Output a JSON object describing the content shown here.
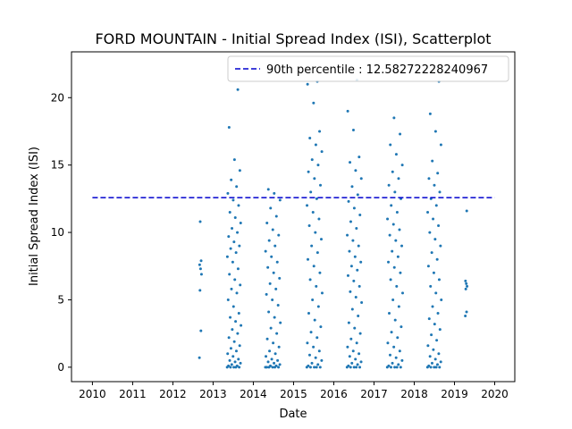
{
  "chart_data": {
    "type": "scatter",
    "title": "FORD MOUNTAIN - Initial Spread Index (ISI), Scatterplot",
    "xlabel": "Date",
    "ylabel": "Initial Spread Index (ISI)",
    "xlim": [
      2009.48,
      2020.5
    ],
    "ylim": [
      -1.07,
      23.4
    ],
    "x_ticks": [
      2010,
      2011,
      2012,
      2013,
      2014,
      2015,
      2016,
      2017,
      2018,
      2019,
      2020
    ],
    "y_ticks": [
      0,
      5,
      10,
      15,
      20
    ],
    "grid": false,
    "legend_position": "top-right",
    "marker_color": "#1f77b4",
    "reference_line": {
      "label": "90th percentile : 12.58272228240967",
      "value": 12.58272228240967,
      "x_range": [
        2010,
        2020
      ],
      "color": "#0000cd",
      "style": "dashed"
    },
    "seasons": [
      {
        "year": 2012,
        "start": 2012.66,
        "end": 2012.72,
        "values": [
          0.7,
          2.7,
          5.7,
          6.9,
          7.3,
          7.6,
          7.9,
          10.8
        ]
      },
      {
        "year": 2013,
        "start": 2013.35,
        "end": 2013.7,
        "values": [
          0,
          0,
          0,
          0,
          0,
          0.1,
          0.1,
          0.2,
          0.3,
          0.4,
          0.5,
          0.6,
          0.8,
          1.0,
          1.2,
          1.4,
          1.6,
          1.9,
          2.2,
          2.5,
          2.8,
          3.1,
          3.4,
          3.7,
          4.0,
          4.5,
          5.0,
          5.5,
          5.8,
          6.1,
          6.5,
          6.9,
          7.3,
          7.8,
          8.2,
          8.5,
          8.8,
          9.0,
          9.3,
          9.7,
          10.0,
          10.3,
          10.7,
          11.1,
          11.5,
          12.0,
          12.4,
          12.9,
          13.4,
          13.9,
          14.6,
          15.4,
          17.8,
          20.6
        ]
      },
      {
        "year": 2014,
        "start": 2014.3,
        "end": 2014.68,
        "values": [
          0,
          0,
          0,
          0,
          0,
          0,
          0.1,
          0.1,
          0.2,
          0.3,
          0.4,
          0.5,
          0.6,
          0.8,
          1.0,
          1.2,
          1.5,
          1.8,
          2.1,
          2.5,
          2.9,
          3.3,
          3.7,
          4.1,
          4.6,
          5.0,
          5.4,
          5.8,
          6.2,
          6.6,
          7.0,
          7.4,
          7.8,
          8.2,
          8.6,
          9.0,
          9.4,
          9.8,
          10.2,
          10.7,
          11.2,
          11.8,
          12.4,
          12.9,
          13.2
        ]
      },
      {
        "year": 2015,
        "start": 2015.33,
        "end": 2015.72,
        "values": [
          0,
          0,
          0,
          0,
          0,
          0.1,
          0.2,
          0.3,
          0.5,
          0.7,
          0.9,
          1.2,
          1.5,
          1.8,
          2.2,
          2.6,
          3.0,
          3.5,
          4.0,
          4.5,
          5.0,
          5.5,
          6.0,
          6.5,
          7.0,
          7.5,
          8.0,
          8.5,
          9.0,
          9.5,
          10.0,
          10.5,
          11.0,
          11.5,
          12.0,
          12.5,
          13.0,
          13.5,
          14.0,
          14.5,
          15.0,
          15.4,
          16.0,
          16.5,
          17.0,
          17.5,
          19.6,
          21.0,
          21.2
        ]
      },
      {
        "year": 2016,
        "start": 2016.33,
        "end": 2016.7,
        "values": [
          0,
          0,
          0,
          0,
          0,
          0.1,
          0.2,
          0.3,
          0.4,
          0.6,
          0.8,
          1.0,
          1.2,
          1.5,
          1.8,
          2.1,
          2.5,
          2.9,
          3.3,
          3.8,
          4.3,
          4.8,
          5.2,
          5.6,
          6.0,
          6.4,
          6.8,
          7.2,
          7.5,
          7.8,
          8.2,
          8.6,
          9.0,
          9.4,
          9.8,
          10.3,
          10.8,
          11.3,
          11.8,
          12.3,
          12.8,
          13.4,
          14.0,
          14.6,
          15.2,
          15.6,
          17.6,
          19.0,
          21.3
        ]
      },
      {
        "year": 2017,
        "start": 2017.33,
        "end": 2017.72,
        "values": [
          0,
          0,
          0,
          0,
          0,
          0.1,
          0.2,
          0.3,
          0.5,
          0.7,
          0.9,
          1.2,
          1.5,
          1.8,
          2.2,
          2.6,
          3.0,
          3.5,
          4.0,
          4.5,
          5.0,
          5.5,
          6.0,
          6.5,
          7.0,
          7.4,
          7.8,
          8.2,
          8.6,
          9.0,
          9.4,
          9.8,
          10.2,
          10.6,
          11.0,
          11.5,
          12.0,
          12.5,
          13.0,
          13.5,
          14.0,
          14.5,
          15.0,
          15.8,
          16.5,
          17.3,
          18.5
        ]
      },
      {
        "year": 2018,
        "start": 2018.33,
        "end": 2018.68,
        "values": [
          0,
          0,
          0,
          0,
          0,
          0.1,
          0.2,
          0.3,
          0.4,
          0.6,
          0.8,
          1.0,
          1.3,
          1.6,
          2.0,
          2.4,
          2.8,
          3.2,
          3.6,
          4.0,
          4.5,
          5.0,
          5.5,
          6.0,
          6.5,
          7.0,
          7.5,
          8.0,
          8.5,
          9.0,
          9.5,
          10.0,
          10.5,
          11.0,
          11.5,
          12.0,
          12.5,
          13.0,
          13.5,
          14.0,
          14.4,
          15.3,
          16.5,
          17.5,
          18.8,
          21.2
        ]
      },
      {
        "year": 2019,
        "start": 2019.27,
        "end": 2019.32,
        "values": [
          3.8,
          4.1,
          5.8,
          6.0,
          6.2,
          6.4,
          11.6
        ]
      }
    ]
  }
}
